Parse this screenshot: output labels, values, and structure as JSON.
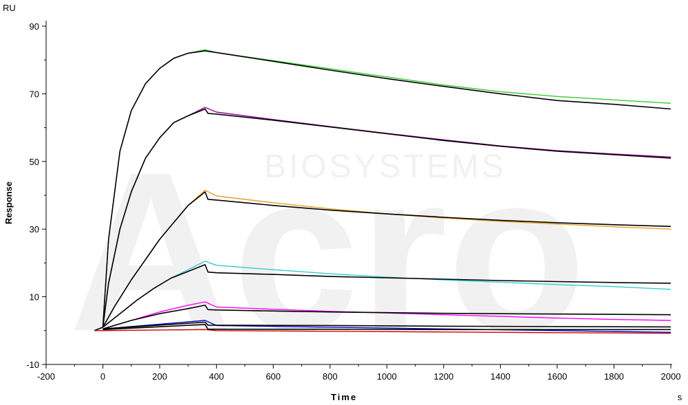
{
  "chart_data": {
    "type": "line",
    "title": "",
    "xlabel": "Time",
    "ylabel": "Response",
    "x_unit": "s",
    "y_unit": "RU",
    "xlim": [
      -200,
      2000
    ],
    "ylim": [
      -10,
      90
    ],
    "x_ticks": [
      -200,
      0,
      200,
      400,
      600,
      800,
      1000,
      1200,
      1400,
      1600,
      1800,
      2000
    ],
    "y_ticks": [
      -10,
      10,
      30,
      50,
      70,
      90
    ],
    "grid": false,
    "legend": "none",
    "watermark": "BIOSYSTEMS",
    "colors": {
      "green": "#33cc33",
      "purple": "#990099",
      "orange": "#e6a020",
      "cyan": "#33cccc",
      "magenta": "#ff00ff",
      "blue": "#0000cc",
      "red": "#cc0000",
      "fit": "#000000"
    },
    "series": [
      {
        "color": "#33cc33",
        "style": "measured",
        "x": [
          -30,
          0,
          20,
          60,
          100,
          150,
          200,
          250,
          300,
          360,
          400,
          600,
          800,
          1000,
          1200,
          1400,
          1600,
          1800,
          2000
        ],
        "y": [
          0,
          1,
          27,
          53,
          65,
          73,
          77.5,
          80.5,
          82,
          83,
          82.2,
          79.8,
          77.4,
          75,
          72.6,
          70.6,
          69.2,
          68.2,
          67.2
        ]
      },
      {
        "color": "#000000",
        "style": "fit",
        "x": [
          -30,
          0,
          20,
          60,
          100,
          150,
          200,
          250,
          300,
          360,
          400,
          600,
          800,
          1000,
          1200,
          1400,
          1600,
          1800,
          2000
        ],
        "y": [
          0,
          1,
          27,
          53,
          65,
          73,
          77.5,
          80.5,
          82,
          82.7,
          82.2,
          79.6,
          77,
          74.5,
          72.2,
          70,
          68,
          66.9,
          65.5
        ]
      },
      {
        "color": "#990099",
        "style": "measured",
        "x": [
          0,
          20,
          60,
          100,
          150,
          200,
          250,
          300,
          360,
          400,
          600,
          800,
          1000,
          1200,
          1400,
          1600,
          1800,
          2000
        ],
        "y": [
          1,
          14,
          30,
          41,
          51,
          57,
          61.5,
          63.5,
          66,
          64.6,
          62.4,
          60.3,
          58.3,
          56.4,
          54.6,
          53.2,
          52.2,
          51.3
        ]
      },
      {
        "color": "#000000",
        "style": "fit",
        "x": [
          0,
          20,
          60,
          100,
          150,
          200,
          250,
          300,
          360,
          370,
          400,
          600,
          800,
          1000,
          1200,
          1400,
          1600,
          1800,
          2000
        ],
        "y": [
          1,
          14,
          30,
          41,
          51,
          57,
          61.5,
          63.5,
          65.5,
          64.2,
          64,
          62.2,
          60.2,
          58.2,
          56.2,
          54.5,
          53,
          52,
          51
        ]
      },
      {
        "color": "#e6a020",
        "style": "measured",
        "x": [
          0,
          40,
          100,
          150,
          200,
          250,
          300,
          360,
          400,
          600,
          800,
          1000,
          1200,
          1400,
          1600,
          1800,
          2000
        ],
        "y": [
          1,
          7,
          15,
          21,
          27,
          32,
          37,
          41.5,
          39.8,
          37.8,
          36,
          34.5,
          33.3,
          32.3,
          31.5,
          30.7,
          30
        ]
      },
      {
        "color": "#000000",
        "style": "fit",
        "x": [
          0,
          40,
          100,
          150,
          200,
          250,
          300,
          360,
          370,
          400,
          600,
          800,
          1000,
          1200,
          1400,
          1600,
          1800,
          2000
        ],
        "y": [
          1,
          7,
          15,
          21,
          27,
          32,
          37,
          41,
          38.8,
          38.6,
          37,
          35.6,
          34.5,
          33.5,
          32.6,
          31.9,
          31.3,
          30.8
        ]
      },
      {
        "color": "#33cccc",
        "style": "measured",
        "x": [
          0,
          60,
          120,
          180,
          240,
          300,
          360,
          400,
          600,
          800,
          1000,
          1200,
          1400,
          1600,
          1800,
          2000
        ],
        "y": [
          1,
          5,
          9,
          12.5,
          15.5,
          18,
          20.5,
          19.3,
          18,
          16.8,
          15.8,
          15,
          14.3,
          13.6,
          13,
          12.2
        ]
      },
      {
        "color": "#000000",
        "style": "fit",
        "x": [
          0,
          60,
          120,
          180,
          240,
          300,
          360,
          370,
          400,
          600,
          800,
          1000,
          1200,
          1400,
          1600,
          1800,
          2000
        ],
        "y": [
          1,
          5,
          9,
          12.5,
          15.5,
          17.5,
          19.5,
          17.3,
          17.1,
          16.6,
          16,
          15.6,
          15.2,
          14.8,
          14.5,
          14.2,
          14
        ]
      },
      {
        "color": "#ff00ff",
        "style": "measured",
        "x": [
          0,
          100,
          200,
          300,
          360,
          400,
          600,
          800,
          1000,
          1200,
          1400,
          1600,
          1800,
          2000
        ],
        "y": [
          0.5,
          3,
          5.5,
          7.5,
          8.5,
          7,
          6.3,
          5.7,
          5.2,
          4.7,
          4.2,
          3.7,
          3.3,
          3
        ]
      },
      {
        "color": "#000000",
        "style": "fit",
        "x": [
          0,
          100,
          200,
          300,
          360,
          370,
          400,
          600,
          800,
          1000,
          1200,
          1400,
          1600,
          1800,
          2000
        ],
        "y": [
          0.5,
          3,
          5,
          6.5,
          7.5,
          6.2,
          6.1,
          5.8,
          5.5,
          5.3,
          5.1,
          5,
          4.9,
          4.8,
          4.7
        ]
      },
      {
        "color": "#0000cc",
        "style": "measured",
        "x": [
          0,
          360,
          400,
          800,
          1200,
          1600,
          2000
        ],
        "y": [
          0.5,
          3,
          1.5,
          1,
          0.5,
          0,
          -0.5
        ]
      },
      {
        "color": "#000000",
        "style": "fit",
        "x": [
          0,
          360,
          370,
          800,
          1200,
          1600,
          2000
        ],
        "y": [
          0.5,
          2.5,
          1.6,
          1.5,
          1.3,
          1.2,
          1.1
        ]
      },
      {
        "color": "#cc0000",
        "style": "measured",
        "x": [
          -30,
          0,
          360,
          400,
          800,
          1200,
          1600,
          2000
        ],
        "y": [
          0,
          0,
          0.3,
          0,
          -0.2,
          -0.4,
          -0.6,
          -0.8
        ]
      },
      {
        "color": "#000000",
        "style": "fit",
        "x": [
          0,
          360,
          370,
          800,
          1200,
          1600,
          2000
        ],
        "y": [
          0.3,
          1.8,
          0.4,
          0.4,
          0.3,
          0.3,
          0.3
        ]
      }
    ]
  }
}
